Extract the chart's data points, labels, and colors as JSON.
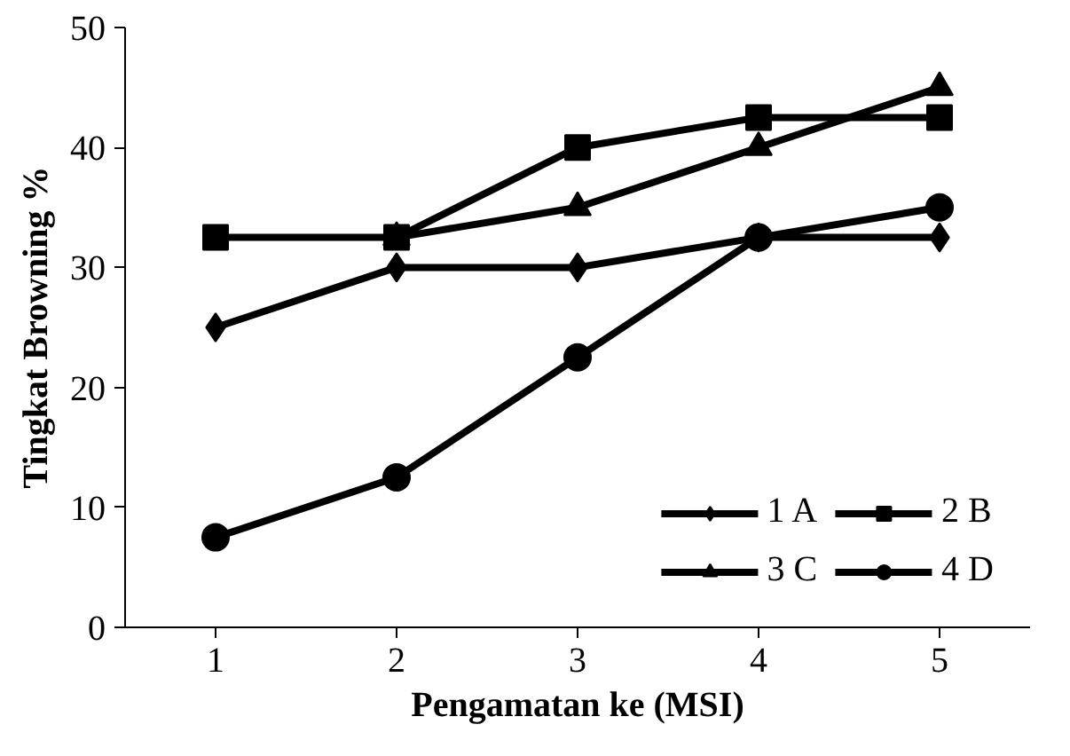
{
  "chart_data": {
    "type": "line",
    "xlabel": "Pengamatan ke (MSI)",
    "ylabel": "Tingkat Browning %",
    "x": [
      1,
      2,
      3,
      4,
      5
    ],
    "xlim": [
      0.5,
      5.5
    ],
    "xticks": [
      1,
      2,
      3,
      4,
      5
    ],
    "ylim": [
      0,
      50
    ],
    "yticks": [
      0,
      10,
      20,
      30,
      40,
      50
    ],
    "grid": false,
    "legend": "bottom right",
    "line_style": "solid",
    "series": [
      {
        "name": "1 A",
        "color": "#000000",
        "marker": "diamond",
        "values": [
          25,
          30,
          30,
          32.5,
          32.5
        ]
      },
      {
        "name": "2 B",
        "color": "#000000",
        "marker": "square",
        "values": [
          32.5,
          32.5,
          40,
          42.5,
          42.5
        ]
      },
      {
        "name": "3 C",
        "color": "#000000",
        "marker": "triangle",
        "values": [
          null,
          32.5,
          35,
          40,
          45
        ]
      },
      {
        "name": "4 D",
        "color": "#000000",
        "marker": "circle",
        "values": [
          7.5,
          12.5,
          22.5,
          32.5,
          35
        ]
      }
    ]
  }
}
